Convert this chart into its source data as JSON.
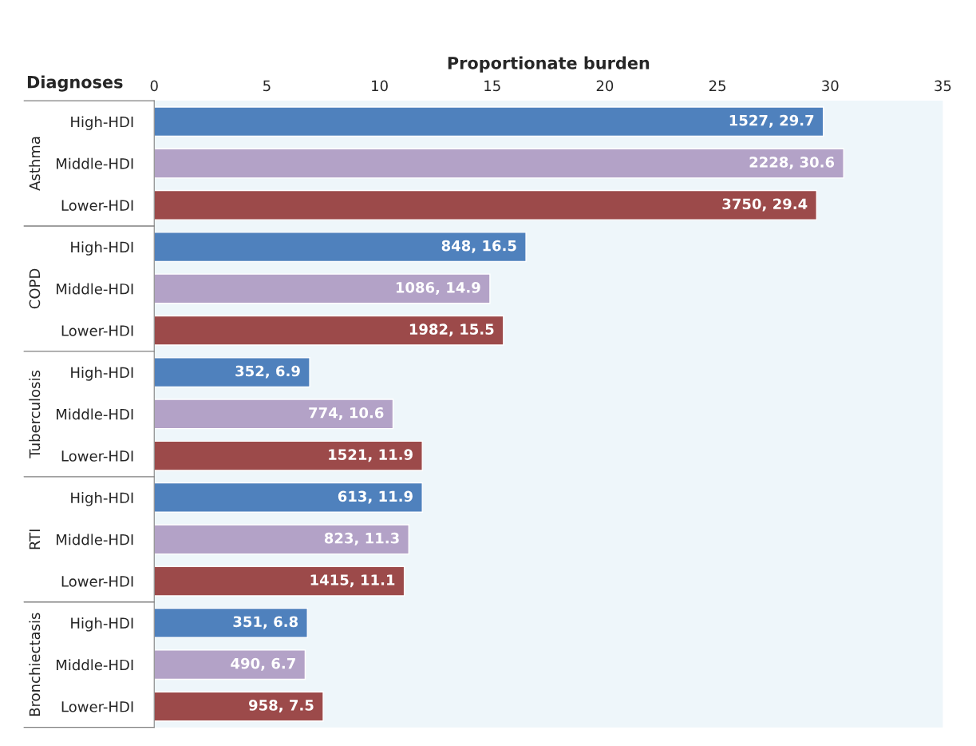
{
  "chart_data": {
    "type": "bar",
    "orientation": "horizontal",
    "xlabel": "Proportionate burden",
    "ylabel": "Diagnoses",
    "categories": [
      "High-HDI",
      "Middle-HDI",
      "Lower-HDI",
      "High-HDI",
      "Middle-HDI",
      "Lower-HDI",
      "High-HDI",
      "Middle-HDI",
      "Lower-HDI",
      "High-HDI",
      "Middle-HDI",
      "Lower-HDI",
      "High-HDI",
      "Middle-HDI",
      "Lower-HDI"
    ],
    "values": [
      29.7,
      30.6,
      29.4,
      16.5,
      14.9,
      15.5,
      6.9,
      10.6,
      11.9,
      11.9,
      11.3,
      11.1,
      6.8,
      6.7,
      7.5
    ],
    "colors": [
      "#4f81bd",
      "#b3a2c7",
      "#9c4a4a",
      "#4f81bd",
      "#b3a2c7",
      "#9c4a4a",
      "#4f81bd",
      "#b3a2c7",
      "#9c4a4a",
      "#4f81bd",
      "#b3a2c7",
      "#9c4a4a",
      "#4f81bd",
      "#b3a2c7",
      "#9c4a4a"
    ],
    "value_labels": [
      "1527, 29.7",
      "2228, 30.6",
      "3750, 29.4",
      "848, 16.5",
      "1086, 14.9",
      "1982, 15.5",
      "352, 6.9",
      "774, 10.6",
      "1521, 11.9",
      "613, 11.9",
      "823, 11.3",
      "1415, 11.1",
      "351, 6.8",
      "490, 6.7",
      "958, 7.5"
    ],
    "annotations": [
      "Asthma",
      "COPD",
      "Tuberculosis",
      "RTI",
      "Bronchiectasis"
    ],
    "xlim": [
      0,
      35
    ],
    "xticks": [
      0,
      5,
      10,
      15,
      20,
      25,
      30,
      35
    ],
    "grid": false,
    "legend": false
  }
}
